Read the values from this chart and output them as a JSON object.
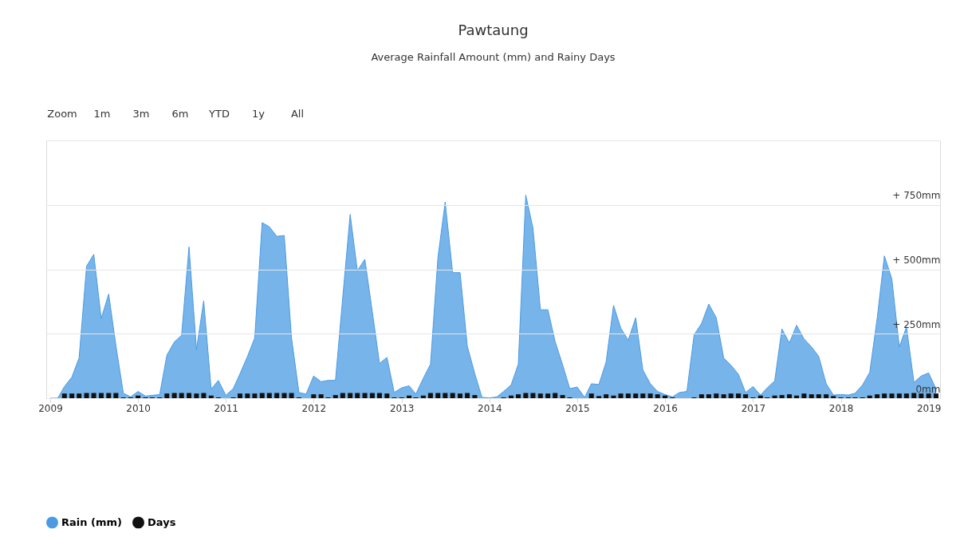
{
  "chart_data": {
    "type": "area",
    "title": "Pawtaung",
    "subtitle": "Average Rainfall Amount (mm) and Rainy Days",
    "annotations": [
      "Zoom",
      "1m",
      "3m",
      "6m",
      "YTD",
      "1y",
      "All"
    ],
    "x": [
      "2009-01",
      "2009-02",
      "2009-03",
      "2009-04",
      "2009-05",
      "2009-06",
      "2009-07",
      "2009-08",
      "2009-09",
      "2009-10",
      "2009-11",
      "2009-12",
      "2010-01",
      "2010-02",
      "2010-03",
      "2010-04",
      "2010-05",
      "2010-06",
      "2010-07",
      "2010-08",
      "2010-09",
      "2010-10",
      "2010-11",
      "2010-12",
      "2011-01",
      "2011-02",
      "2011-03",
      "2011-04",
      "2011-05",
      "2011-06",
      "2011-07",
      "2011-08",
      "2011-09",
      "2011-10",
      "2011-11",
      "2011-12",
      "2012-01",
      "2012-02",
      "2012-03",
      "2012-04",
      "2012-05",
      "2012-06",
      "2012-07",
      "2012-08",
      "2012-09",
      "2012-10",
      "2012-11",
      "2012-12",
      "2013-01",
      "2013-02",
      "2013-03",
      "2013-04",
      "2013-05",
      "2013-06",
      "2013-07",
      "2013-08",
      "2013-09",
      "2013-10",
      "2013-11",
      "2013-12",
      "2014-01",
      "2014-02",
      "2014-03",
      "2014-04",
      "2014-05",
      "2014-06",
      "2014-07",
      "2014-08",
      "2014-09",
      "2014-10",
      "2014-11",
      "2014-12",
      "2015-01",
      "2015-02",
      "2015-03",
      "2015-04",
      "2015-05",
      "2015-06",
      "2015-07",
      "2015-08",
      "2015-09",
      "2015-10",
      "2015-11",
      "2015-12",
      "2016-01",
      "2016-02",
      "2016-03",
      "2016-04",
      "2016-05",
      "2016-06",
      "2016-07",
      "2016-08",
      "2016-09",
      "2016-10",
      "2016-11",
      "2016-12",
      "2017-01",
      "2017-02",
      "2017-03",
      "2017-04",
      "2017-05",
      "2017-06",
      "2017-07",
      "2017-08",
      "2017-09",
      "2017-10",
      "2017-11",
      "2017-12",
      "2018-01",
      "2018-02",
      "2018-03",
      "2018-04",
      "2018-05",
      "2018-06",
      "2018-07",
      "2018-08",
      "2018-09",
      "2018-10",
      "2018-11",
      "2018-12",
      "2019-01",
      "2019-02"
    ],
    "series": [
      {
        "name": "Rain (mm)",
        "color": "#4a9be3",
        "values": [
          0,
          0,
          45,
          82,
          156,
          512,
          558,
          309,
          404,
          204,
          19,
          5,
          26,
          8,
          11,
          14,
          167,
          218,
          244,
          587,
          188,
          378,
          35,
          69,
          11,
          37,
          95,
          162,
          233,
          681,
          665,
          628,
          631,
          235,
          22,
          16,
          86,
          64,
          69,
          69,
          390,
          713,
          494,
          539,
          336,
          135,
          158,
          22,
          40,
          48,
          16,
          77,
          132,
          547,
          761,
          487,
          487,
          202,
          95,
          3,
          1,
          5,
          26,
          51,
          132,
          788,
          660,
          343,
          343,
          220,
          130,
          37,
          43,
          3,
          56,
          53,
          140,
          360,
          272,
          225,
          312,
          109,
          56,
          26,
          14,
          5,
          22,
          26,
          246,
          290,
          365,
          312,
          156,
          128,
          93,
          22,
          45,
          12,
          40,
          67,
          269,
          214,
          283,
          230,
          199,
          162,
          56,
          12,
          14,
          12,
          19,
          51,
          100,
          309,
          552,
          463,
          199,
          276,
          61,
          86,
          98,
          35
        ]
      },
      {
        "name": "Days",
        "type": "bar",
        "color": "#111111",
        "values": [
          0,
          0,
          18,
          18,
          18,
          20,
          20,
          20,
          20,
          20,
          3,
          3,
          10,
          3,
          3,
          3,
          18,
          20,
          20,
          20,
          18,
          20,
          10,
          3,
          0,
          3,
          18,
          18,
          18,
          20,
          20,
          20,
          20,
          20,
          3,
          0,
          15,
          15,
          3,
          12,
          20,
          20,
          20,
          20,
          20,
          20,
          18,
          3,
          3,
          10,
          3,
          10,
          20,
          20,
          20,
          20,
          18,
          20,
          12,
          0,
          0,
          0,
          3,
          10,
          15,
          20,
          20,
          18,
          18,
          20,
          12,
          3,
          0,
          0,
          18,
          8,
          15,
          10,
          18,
          18,
          18,
          18,
          18,
          15,
          10,
          3,
          0,
          0,
          3,
          15,
          15,
          18,
          15,
          18,
          18,
          15,
          3,
          10,
          3,
          10,
          12,
          15,
          10,
          18,
          15,
          15,
          15,
          8,
          3,
          3,
          3,
          3,
          10,
          15,
          18,
          18,
          18,
          18,
          20,
          18,
          18,
          18
        ]
      }
    ],
    "xlim": [
      "2009-01",
      "2019-02"
    ],
    "xticks": [
      "2009",
      "2010",
      "2011",
      "2012",
      "2013",
      "2014",
      "2015",
      "2016",
      "2017",
      "2018",
      "2019"
    ],
    "ylim": [
      0,
      1000
    ],
    "yticks": [
      {
        "value": 0,
        "label": "0mm"
      },
      {
        "value": 250,
        "label": "+ 250mm"
      },
      {
        "value": 500,
        "label": "+ 500mm"
      },
      {
        "value": 750,
        "label": "+ 750mm"
      },
      {
        "value": 1000,
        "label": null
      }
    ],
    "grid": "y",
    "legend": "bottom"
  }
}
